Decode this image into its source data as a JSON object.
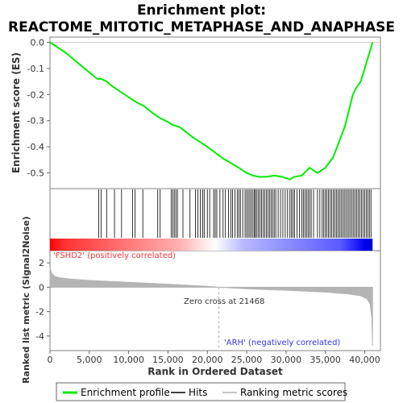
{
  "chart_data": {
    "type": "line",
    "title_line1": "Enrichment plot:",
    "title_line2": "REACTOME_MITOTIC_METAPHASE_AND_ANAPHASE",
    "xlabel": "Rank in Ordered Dataset",
    "ylabel_top": "Enrichment score (ES)",
    "ylabel_bottom": "Ranked list metric (Signal2Noise)",
    "xlim": [
      0,
      42000
    ],
    "es_ylim": [
      -0.56,
      0.02
    ],
    "metric_ylim": [
      -5.2,
      3.0
    ],
    "x_ticks": [
      0,
      5000,
      10000,
      15000,
      20000,
      25000,
      30000,
      35000,
      40000
    ],
    "x_tick_labels": [
      "0",
      "5,000",
      "10,000",
      "15,000",
      "20,000",
      "25,000",
      "30,000",
      "35,000",
      "40,000"
    ],
    "es_ticks": [
      0.0,
      -0.1,
      -0.2,
      -0.3,
      -0.4,
      -0.5
    ],
    "es_tick_labels": [
      "0.0",
      "-0.1",
      "-0.2",
      "-0.3",
      "-0.4",
      "-0.5"
    ],
    "metric_ticks": [
      2,
      0,
      -2,
      -4
    ],
    "metric_tick_labels": [
      "2",
      "0",
      "-2",
      "-4"
    ],
    "positive_label": "'FSHD2' (positively correlated)",
    "negative_label": "'ARH' (negatively correlated)",
    "zero_cross_label": "Zero cross at 21468",
    "zero_cross": 21468,
    "n_genes": 41000,
    "enrichment_profile": {
      "x": [
        0,
        2000,
        4000,
        6000,
        6500,
        7200,
        8000,
        9000,
        10000,
        11000,
        12000,
        13000,
        14000,
        15000,
        15500,
        16000,
        16500,
        18000,
        20000,
        22000,
        24000,
        25000,
        25800,
        26500,
        27500,
        28500,
        29500,
        30500,
        31000,
        32000,
        33000,
        34000,
        35000,
        36000,
        37000,
        37500,
        38000,
        38500,
        39000,
        39500,
        40000,
        40500,
        41000
      ],
      "y": [
        0.0,
        -0.04,
        -0.09,
        -0.14,
        -0.14,
        -0.15,
        -0.17,
        -0.19,
        -0.21,
        -0.23,
        -0.245,
        -0.27,
        -0.29,
        -0.305,
        -0.315,
        -0.32,
        -0.325,
        -0.36,
        -0.4,
        -0.445,
        -0.48,
        -0.5,
        -0.51,
        -0.515,
        -0.515,
        -0.51,
        -0.515,
        -0.525,
        -0.515,
        -0.51,
        -0.48,
        -0.5,
        -0.48,
        -0.44,
        -0.36,
        -0.32,
        -0.26,
        -0.2,
        -0.17,
        -0.15,
        -0.1,
        -0.05,
        0.0
      ]
    },
    "hits": [
      6200,
      6500,
      7200,
      8200,
      9100,
      10500,
      10800,
      11800,
      13700,
      14000,
      15400,
      15600,
      15800,
      16000,
      16200,
      16900,
      17800,
      18500,
      18800,
      19100,
      19400,
      19600,
      20000,
      20300,
      20800,
      21000,
      21200,
      21600,
      22000,
      22300,
      22700,
      23000,
      23200,
      23500,
      23800,
      24000,
      24200,
      24500,
      24800,
      25000,
      25200,
      25400,
      25600,
      25800,
      26000,
      26100,
      26300,
      26500,
      26700,
      26900,
      27100,
      27300,
      27500,
      27700,
      27900,
      28100,
      28300,
      28500,
      28700,
      29000,
      29300,
      29600,
      29900,
      30200,
      30500,
      30700,
      30900,
      31100,
      31400,
      31700,
      32000,
      32200,
      32400,
      32600,
      32800,
      33000,
      33200,
      33500,
      34000,
      34300,
      34600,
      34800,
      35000,
      35200,
      35400,
      35600,
      35800,
      36000,
      36200,
      36400,
      36600,
      36800,
      37000,
      37200,
      37400,
      37600,
      37800,
      38000,
      38200,
      38400,
      38600,
      38800,
      39000,
      39200,
      39400,
      39600,
      39800,
      40000,
      40200,
      40400,
      40600,
      40800
    ],
    "metric_profile": {
      "x": [
        0,
        200,
        600,
        1200,
        2500,
        5000,
        10000,
        15000,
        20000,
        21468,
        25000,
        30000,
        35000,
        38000,
        39500,
        40300,
        40700,
        40900,
        41000
      ],
      "y": [
        1.6,
        1.15,
        0.9,
        0.78,
        0.68,
        0.55,
        0.4,
        0.25,
        0.08,
        0.0,
        -0.12,
        -0.25,
        -0.4,
        -0.55,
        -0.7,
        -0.95,
        -1.4,
        -2.5,
        -4.8
      ]
    },
    "colors": {
      "enrichment_line": "#00ee00",
      "hit_line": "#000000",
      "metric_fill": "#b4b4b4",
      "positive_text": "#ff3333",
      "negative_text": "#3333ee",
      "zero_line": "#aaaaaa"
    }
  },
  "legend": {
    "items": [
      {
        "label": "Enrichment profile",
        "color": "#00ee00"
      },
      {
        "label": "Hits",
        "color": "#000000"
      },
      {
        "label": "Ranking metric scores",
        "color": "#b4b4b4"
      }
    ]
  }
}
